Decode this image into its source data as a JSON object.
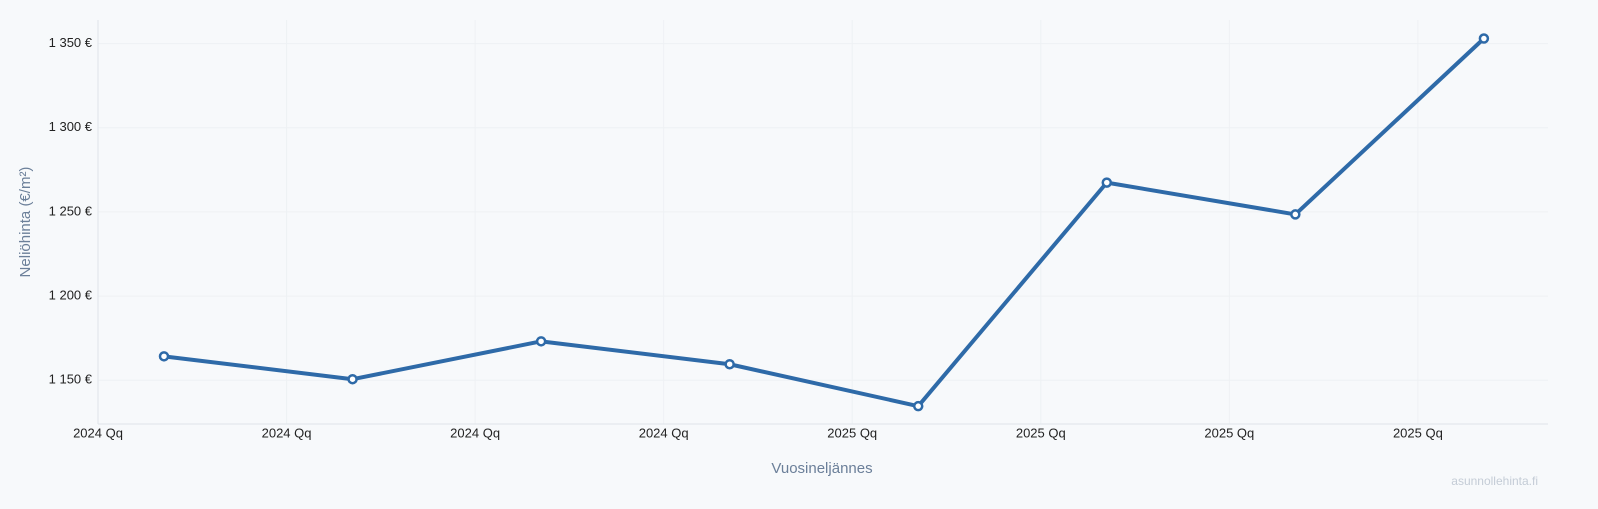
{
  "chart_data": {
    "type": "line",
    "ylabel": "Neliöhinta (€/m²)",
    "xlabel": "Vuosineljännes",
    "watermark": "asunnollehinta.fi",
    "x": [
      1,
      2,
      3,
      4,
      5,
      6,
      7,
      8
    ],
    "series": [
      {
        "color": "#2e6aa8",
        "values": [
          1164.2,
          1150.6,
          1173.1,
          1159.5,
          1134.6,
          1267.4,
          1248.5,
          1353
        ]
      }
    ],
    "xlim": [
      0.65,
      8.34
    ],
    "xticks": [
      {
        "value": 0.65,
        "label": "2024 Qq"
      },
      {
        "value": 1.65,
        "label": "2024 Qq"
      },
      {
        "value": 2.65,
        "label": "2024 Qq"
      },
      {
        "value": 3.65,
        "label": "2024 Qq"
      },
      {
        "value": 4.65,
        "label": "2025 Qq"
      },
      {
        "value": 5.65,
        "label": "2025 Qq"
      },
      {
        "value": 6.65,
        "label": "2025 Qq"
      },
      {
        "value": 7.65,
        "label": "2025 Qq"
      }
    ],
    "ylim": [
      1124,
      1364
    ],
    "yticks": [
      {
        "value": 1150,
        "label": "1 150 €"
      },
      {
        "value": 1200,
        "label": "1 200 €"
      },
      {
        "value": 1250,
        "label": "1 250 €"
      },
      {
        "value": 1300,
        "label": "1 300 €"
      },
      {
        "value": 1350,
        "label": "1 350 €"
      }
    ],
    "grid": true
  }
}
